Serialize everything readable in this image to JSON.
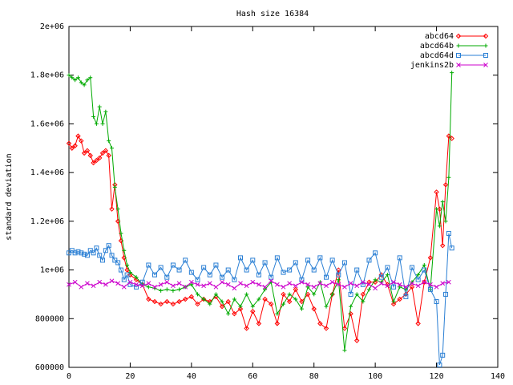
{
  "chart_data": {
    "type": "line",
    "title": "Hash size 16384",
    "xlabel": "",
    "ylabel": "standard deviation",
    "xlim": [
      0,
      140
    ],
    "ylim": [
      600000,
      2000000
    ],
    "xticks": [
      0,
      20,
      40,
      60,
      80,
      100,
      120,
      140
    ],
    "xtick_labels": [
      "0",
      "20",
      "40",
      "60",
      "80",
      "100",
      "120",
      "140"
    ],
    "yticks": [
      600000,
      800000,
      1000000,
      1200000,
      1400000,
      1600000,
      1800000,
      2000000
    ],
    "ytick_labels": [
      "600000",
      "800000",
      "1e+06",
      "1.2e+06",
      "1.4e+06",
      "1.6e+06",
      "1.8e+06",
      "2e+06"
    ],
    "legend_position": "top-right",
    "grid": false,
    "series": [
      {
        "name": "abcd64",
        "color": "#ff0000",
        "marker": "diamond",
        "x": [
          0,
          1,
          2,
          3,
          4,
          5,
          6,
          7,
          8,
          9,
          10,
          11,
          12,
          13,
          14,
          15,
          16,
          17,
          18,
          19,
          20,
          22,
          24,
          26,
          28,
          30,
          32,
          34,
          36,
          38,
          40,
          42,
          44,
          46,
          48,
          50,
          52,
          54,
          56,
          58,
          60,
          62,
          64,
          66,
          68,
          70,
          72,
          74,
          76,
          78,
          80,
          82,
          84,
          86,
          88,
          90,
          92,
          94,
          96,
          98,
          100,
          102,
          104,
          106,
          108,
          110,
          112,
          114,
          116,
          118,
          120,
          121,
          122,
          123,
          124,
          125
        ],
        "y": [
          1520000,
          1500000,
          1510000,
          1550000,
          1530000,
          1480000,
          1490000,
          1470000,
          1440000,
          1450000,
          1460000,
          1480000,
          1490000,
          1470000,
          1250000,
          1350000,
          1200000,
          1120000,
          1050000,
          1000000,
          980000,
          960000,
          940000,
          880000,
          870000,
          860000,
          870000,
          860000,
          870000,
          880000,
          890000,
          860000,
          880000,
          870000,
          890000,
          850000,
          870000,
          820000,
          840000,
          760000,
          830000,
          780000,
          880000,
          860000,
          780000,
          900000,
          870000,
          920000,
          870000,
          900000,
          840000,
          780000,
          760000,
          900000,
          1000000,
          760000,
          820000,
          710000,
          900000,
          950000,
          950000,
          980000,
          940000,
          860000,
          880000,
          900000,
          930000,
          780000,
          950000,
          1050000,
          1320000,
          1250000,
          1100000,
          1350000,
          1550000,
          1540000
        ]
      },
      {
        "name": "abcd64b",
        "color": "#00aa00",
        "marker": "plus",
        "x": [
          0,
          1,
          2,
          3,
          4,
          5,
          6,
          7,
          8,
          9,
          10,
          11,
          12,
          13,
          14,
          15,
          16,
          17,
          18,
          19,
          20,
          22,
          24,
          26,
          28,
          30,
          32,
          34,
          36,
          38,
          40,
          42,
          44,
          46,
          48,
          50,
          52,
          54,
          56,
          58,
          60,
          62,
          64,
          66,
          68,
          70,
          72,
          74,
          76,
          78,
          80,
          82,
          84,
          86,
          88,
          90,
          92,
          94,
          96,
          98,
          100,
          102,
          104,
          106,
          108,
          110,
          112,
          114,
          116,
          118,
          120,
          121,
          122,
          123,
          124,
          125
        ],
        "y": [
          1800000,
          1790000,
          1780000,
          1790000,
          1770000,
          1760000,
          1780000,
          1790000,
          1630000,
          1600000,
          1670000,
          1600000,
          1650000,
          1530000,
          1500000,
          1340000,
          1250000,
          1150000,
          1080000,
          1020000,
          990000,
          970000,
          940000,
          930000,
          925000,
          915000,
          920000,
          915000,
          920000,
          930000,
          940000,
          900000,
          880000,
          860000,
          900000,
          870000,
          820000,
          880000,
          850000,
          900000,
          850000,
          880000,
          920000,
          950000,
          820000,
          860000,
          900000,
          880000,
          840000,
          930000,
          900000,
          950000,
          850000,
          900000,
          960000,
          670000,
          850000,
          900000,
          870000,
          920000,
          960000,
          950000,
          980000,
          870000,
          930000,
          920000,
          950000,
          980000,
          1020000,
          920000,
          1250000,
          1180000,
          1280000,
          1200000,
          1380000,
          1810000
        ]
      },
      {
        "name": "abcd64d",
        "color": "#2a7fd4",
        "marker": "square",
        "x": [
          0,
          1,
          2,
          3,
          4,
          5,
          6,
          7,
          8,
          9,
          10,
          11,
          12,
          13,
          14,
          15,
          16,
          17,
          18,
          19,
          20,
          22,
          24,
          26,
          28,
          30,
          32,
          34,
          36,
          38,
          40,
          42,
          44,
          46,
          48,
          50,
          52,
          54,
          56,
          58,
          60,
          62,
          64,
          66,
          68,
          70,
          72,
          74,
          76,
          78,
          80,
          82,
          84,
          86,
          88,
          90,
          92,
          94,
          96,
          98,
          100,
          102,
          104,
          106,
          108,
          110,
          112,
          114,
          116,
          118,
          120,
          121,
          122,
          123,
          124,
          125
        ],
        "y": [
          1070000,
          1080000,
          1070000,
          1075000,
          1070000,
          1065000,
          1060000,
          1080000,
          1070000,
          1090000,
          1060000,
          1040000,
          1080000,
          1100000,
          1060000,
          1040000,
          1030000,
          1000000,
          960000,
          980000,
          940000,
          930000,
          950000,
          1020000,
          980000,
          1010000,
          970000,
          1020000,
          1000000,
          1040000,
          990000,
          960000,
          1010000,
          980000,
          1020000,
          970000,
          1000000,
          960000,
          1050000,
          1000000,
          1040000,
          980000,
          1030000,
          970000,
          1050000,
          990000,
          1000000,
          1030000,
          960000,
          1040000,
          1000000,
          1050000,
          970000,
          1040000,
          980000,
          1030000,
          900000,
          1000000,
          940000,
          1040000,
          1070000,
          970000,
          1010000,
          930000,
          1050000,
          890000,
          1010000,
          960000,
          1000000,
          920000,
          870000,
          610000,
          650000,
          900000,
          1150000,
          1090000
        ]
      },
      {
        "name": "jenkins2b",
        "color": "#cc00cc",
        "marker": "cross",
        "x": [
          0,
          2,
          4,
          6,
          8,
          10,
          12,
          14,
          16,
          18,
          20,
          22,
          24,
          26,
          28,
          30,
          32,
          34,
          36,
          38,
          40,
          42,
          44,
          46,
          48,
          50,
          52,
          54,
          56,
          58,
          60,
          62,
          64,
          66,
          68,
          70,
          72,
          74,
          76,
          78,
          80,
          82,
          84,
          86,
          88,
          90,
          92,
          94,
          96,
          98,
          100,
          102,
          104,
          106,
          108,
          110,
          112,
          114,
          116,
          118,
          120,
          122,
          124
        ],
        "y": [
          940000,
          950000,
          930000,
          945000,
          935000,
          950000,
          940000,
          955000,
          945000,
          930000,
          950000,
          940000,
          935000,
          945000,
          930000,
          940000,
          950000,
          935000,
          945000,
          930000,
          950000,
          940000,
          935000,
          945000,
          930000,
          950000,
          940000,
          925000,
          945000,
          935000,
          950000,
          940000,
          930000,
          955000,
          940000,
          930000,
          945000,
          935000,
          950000,
          940000,
          930000,
          945000,
          935000,
          950000,
          940000,
          930000,
          945000,
          935000,
          950000,
          940000,
          925000,
          945000,
          935000,
          950000,
          940000,
          930000,
          945000,
          935000,
          950000,
          940000,
          930000,
          945000,
          950000
        ]
      }
    ]
  }
}
